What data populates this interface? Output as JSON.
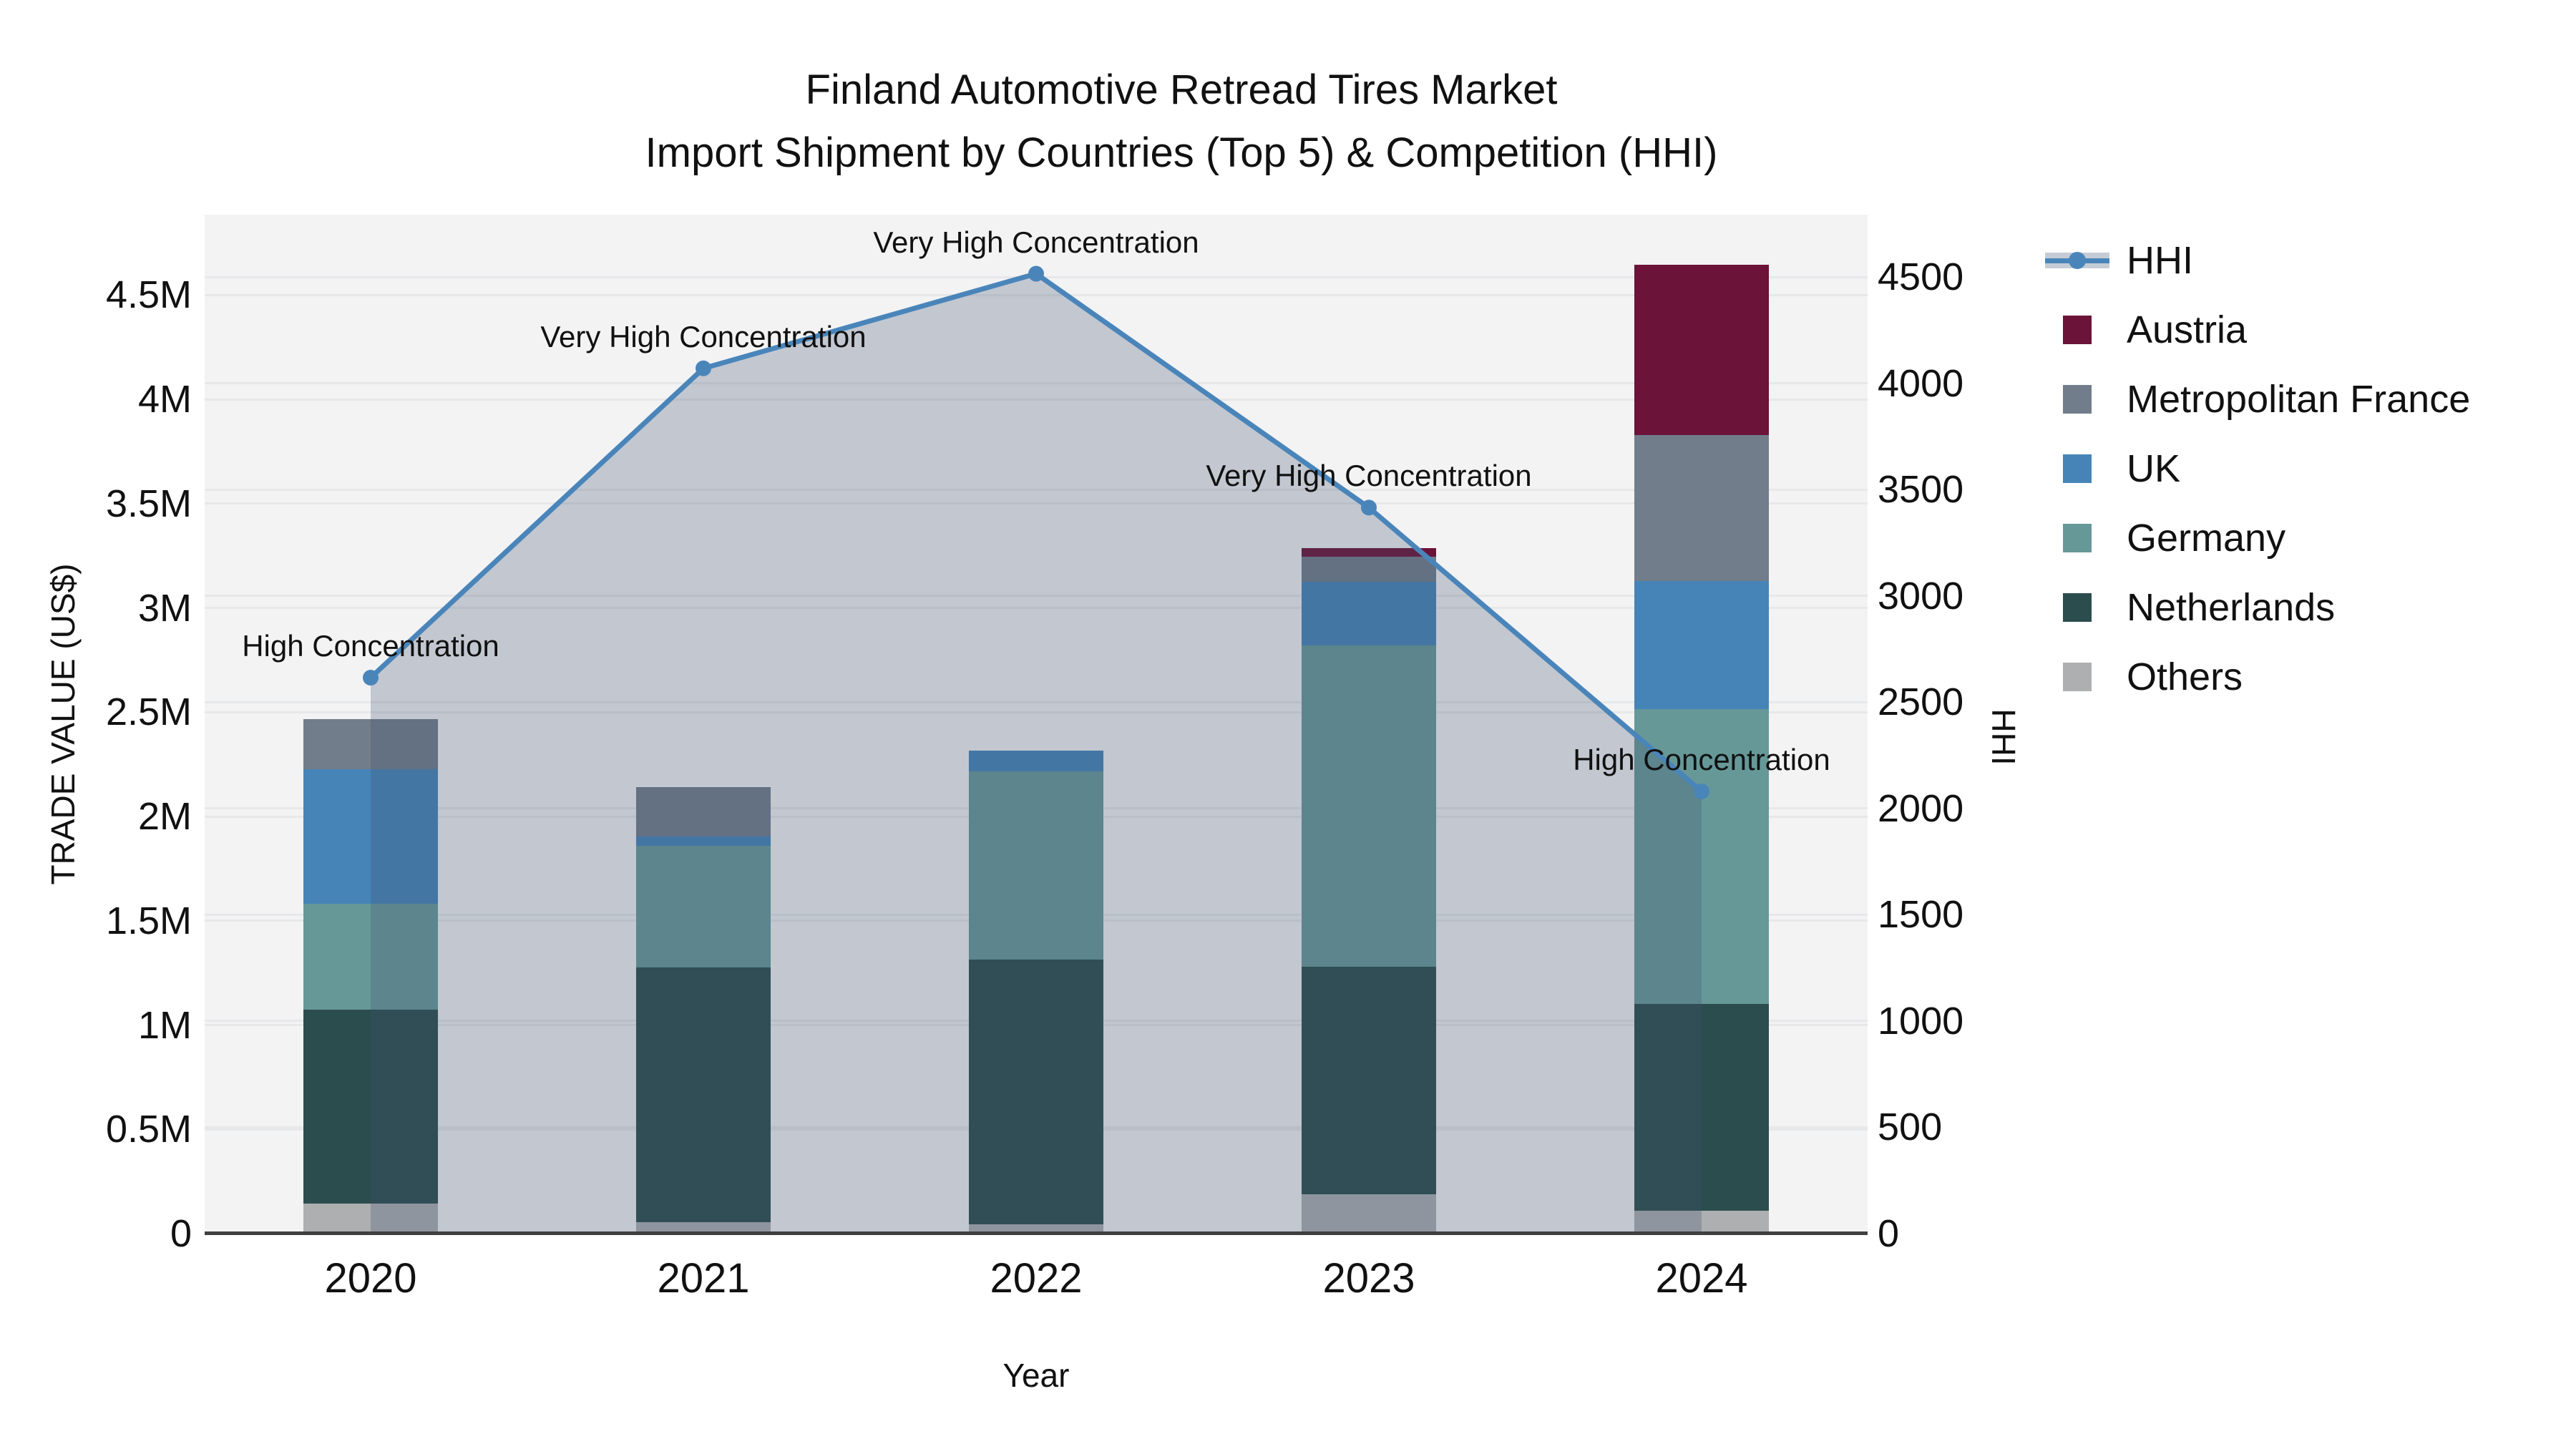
{
  "title": {
    "line1": "Finland Automotive Retread Tires Market",
    "line2": "Import Shipment by Countries (Top 5) & Competition (HHI)"
  },
  "axis": {
    "x_label": "Year",
    "y_left_label": "TRADE VALUE (US$)",
    "y_right_label": "HHI",
    "x_ticks": [
      "2020",
      "2021",
      "2022",
      "2023",
      "2024"
    ],
    "y_left_ticks": [
      {
        "label": "0",
        "value": 0
      },
      {
        "label": "0.5M",
        "value": 500000
      },
      {
        "label": "1M",
        "value": 1000000
      },
      {
        "label": "1.5M",
        "value": 1500000
      },
      {
        "label": "2M",
        "value": 2000000
      },
      {
        "label": "2.5M",
        "value": 2500000
      },
      {
        "label": "3M",
        "value": 3000000
      },
      {
        "label": "3.5M",
        "value": 3500000
      },
      {
        "label": "4M",
        "value": 4000000
      },
      {
        "label": "4.5M",
        "value": 4500000
      }
    ],
    "y_right_ticks": [
      {
        "label": "0",
        "value": 0
      },
      {
        "label": "500",
        "value": 500
      },
      {
        "label": "1000",
        "value": 1000
      },
      {
        "label": "1500",
        "value": 1500
      },
      {
        "label": "2000",
        "value": 2000
      },
      {
        "label": "2500",
        "value": 2500
      },
      {
        "label": "3000",
        "value": 3000
      },
      {
        "label": "3500",
        "value": 3500
      },
      {
        "label": "4000",
        "value": 4000
      },
      {
        "label": "4500",
        "value": 4500
      }
    ]
  },
  "legend": [
    {
      "label": "HHI",
      "type": "line",
      "color": "#4A85BA",
      "band": "#C5CCD5"
    },
    {
      "label": "Austria",
      "type": "box",
      "color": "#6B1338"
    },
    {
      "label": "Metropolitan France",
      "type": "box",
      "color": "#717D8A"
    },
    {
      "label": "UK",
      "type": "box",
      "color": "#4684B8"
    },
    {
      "label": "Germany",
      "type": "box",
      "color": "#679898"
    },
    {
      "label": "Netherlands",
      "type": "box",
      "color": "#2C4D4E"
    },
    {
      "label": "Others",
      "type": "box",
      "color": "#ADAFB0"
    }
  ],
  "chart_data": {
    "type": "bar",
    "subtype": "stacked-bars-with-hhi-line-overlay",
    "title": "Finland Automotive Retread Tires Market — Import Shipment by Countries (Top 5) & Competition (HHI)",
    "xlabel": "Year",
    "ylabel_left": "TRADE VALUE (US$)",
    "ylabel_right": "HHI",
    "categories": [
      "2020",
      "2021",
      "2022",
      "2023",
      "2024"
    ],
    "stack_order": [
      "Others",
      "Netherlands",
      "Germany",
      "UK",
      "Metropolitan France",
      "Austria"
    ],
    "series": [
      {
        "name": "Others",
        "color": "#ADAFB0",
        "values": [
          145000,
          55000,
          45000,
          190000,
          110000
        ]
      },
      {
        "name": "Netherlands",
        "color": "#2C4D4E",
        "values": [
          930000,
          1220000,
          1270000,
          1090000,
          990000
        ]
      },
      {
        "name": "Germany",
        "color": "#679898",
        "values": [
          505000,
          585000,
          900000,
          1540000,
          1415000
        ]
      },
      {
        "name": "UK",
        "color": "#4684B8",
        "values": [
          645000,
          45000,
          100000,
          305000,
          615000
        ]
      },
      {
        "name": "Metropolitan France",
        "color": "#717D8A",
        "values": [
          240000,
          235000,
          0,
          120000,
          700000
        ]
      },
      {
        "name": "Austria",
        "color": "#6B1338",
        "values": [
          0,
          0,
          0,
          40000,
          815000
        ]
      }
    ],
    "bar_totals": [
      2465000,
      2140000,
      2315000,
      3285000,
      4645000
    ],
    "line_series": {
      "name": "HHI",
      "color": "#4A85BA",
      "area_fill": "rgba(64,80,112,0.27)",
      "values": [
        2615,
        4070,
        4515,
        3415,
        2080
      ]
    },
    "annotations": [
      {
        "text": "High Concentration",
        "category": "2020"
      },
      {
        "text": "Very High Concentration",
        "category": "2021"
      },
      {
        "text": "Very High Concentration",
        "category": "2022"
      },
      {
        "text": "Very High Concentration",
        "category": "2023"
      },
      {
        "text": "High Concentration",
        "category": "2024"
      }
    ],
    "y_left_range": [
      0,
      4500000
    ],
    "y_right_range": [
      0,
      4500
    ],
    "grid": true,
    "legend_position": "right",
    "plot_background": "#F3F3F4"
  }
}
